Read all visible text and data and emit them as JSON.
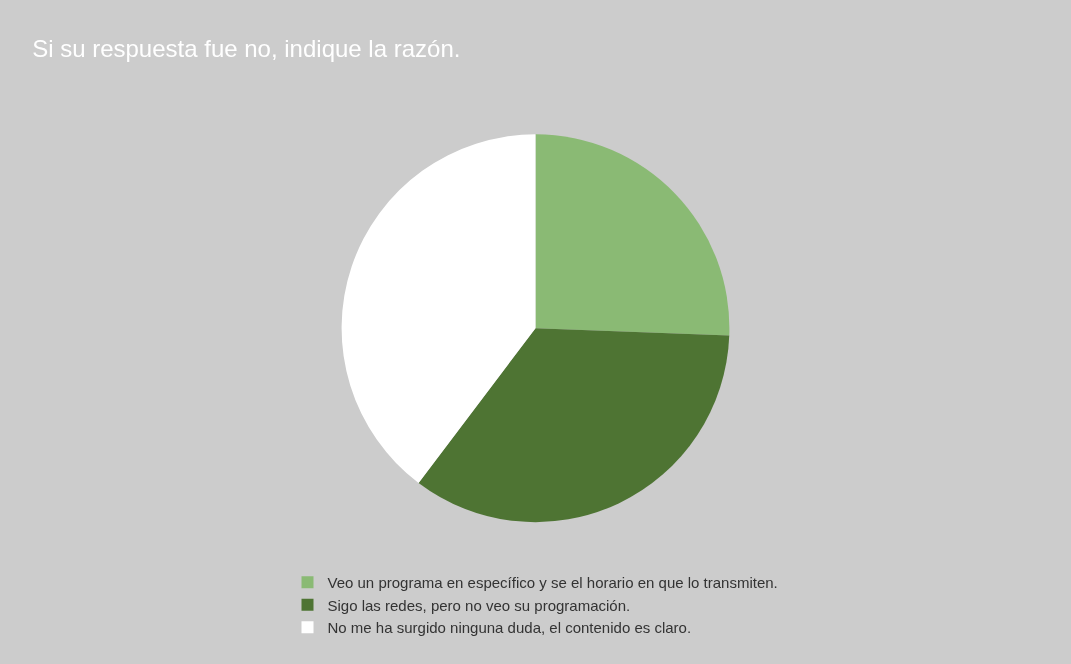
{
  "chart_data": {
    "type": "pie",
    "title": "Si su respuesta fue no, indique la razón.",
    "categories": [
      "Veo un programa en específico y se el horario en que lo transmiten.",
      "Sigo las redes, pero no veo su programación.",
      "No me ha surgido ninguna duda, el contenido es claro."
    ],
    "values": [
      25.6,
      34.7,
      39.7
    ],
    "colors": [
      "#8aba74",
      "#4e7433",
      "#ffffff"
    ],
    "legend": "bottom"
  }
}
